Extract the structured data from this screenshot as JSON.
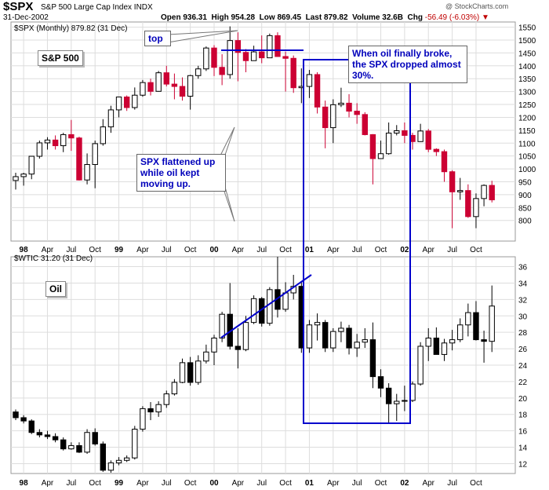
{
  "header": {
    "symbol": "$SPX",
    "name": "S&P 500 Large Cap Index INDX",
    "date": "31-Dec-2002",
    "open_label": "Open",
    "open": "936.31",
    "high_label": "High",
    "high": "954.28",
    "low_label": "Low",
    "low": "869.45",
    "last_label": "Last",
    "last": "879.82",
    "volume_label": "Volume",
    "volume": "32.6B",
    "chg_label": "Chg",
    "chg": "-56.49 (-6.03%)",
    "credit": "@ StockCharts.com"
  },
  "annotations": {
    "top": "top",
    "spx_label": "S&P 500",
    "oil_label": "Oil",
    "flat_note": "SPX flattened up while oil kept moving up.",
    "broke_note": "When oil finally broke, the SPX dropped almost 30%."
  },
  "colors": {
    "down": "#cc0033",
    "up_fill": "#ffffff",
    "oil_down": "#000000",
    "line": "#0000cc",
    "grid": "#dddddd"
  },
  "chart_data": [
    {
      "type": "candlestick",
      "legend": "$SPX (Monthly) 879.82 (31 Dec)",
      "ylim": [
        720,
        1570
      ],
      "y_ticks": [
        800,
        850,
        900,
        950,
        1000,
        1050,
        1100,
        1150,
        1200,
        1250,
        1300,
        1350,
        1400,
        1450,
        1500,
        1550
      ],
      "x_ticks": [
        "98",
        "Apr",
        "Jul",
        "Oct",
        "99",
        "Apr",
        "Jul",
        "Oct",
        "00",
        "Apr",
        "Jul",
        "Oct",
        "01",
        "Apr",
        "Jul",
        "Oct",
        "02",
        "Apr",
        "Jul",
        "Oct"
      ],
      "x_ticks_bold": [
        "98",
        "99",
        "00",
        "01",
        "02"
      ],
      "months": [
        "1997-12",
        "1998-01",
        "1998-02",
        "1998-03",
        "1998-04",
        "1998-05",
        "1998-06",
        "1998-07",
        "1998-08",
        "1998-09",
        "1998-10",
        "1998-11",
        "1998-12",
        "1999-01",
        "1999-02",
        "1999-03",
        "1999-04",
        "1999-05",
        "1999-06",
        "1999-07",
        "1999-08",
        "1999-09",
        "1999-10",
        "1999-11",
        "1999-12",
        "2000-01",
        "2000-02",
        "2000-03",
        "2000-04",
        "2000-05",
        "2000-06",
        "2000-07",
        "2000-08",
        "2000-09",
        "2000-10",
        "2000-11",
        "2000-12",
        "2001-01",
        "2001-02",
        "2001-03",
        "2001-04",
        "2001-05",
        "2001-06",
        "2001-07",
        "2001-08",
        "2001-09",
        "2001-10",
        "2001-11",
        "2001-12",
        "2002-01",
        "2002-02",
        "2002-03",
        "2002-04",
        "2002-05",
        "2002-06",
        "2002-07",
        "2002-08",
        "2002-09",
        "2002-10",
        "2002-11",
        "2002-12"
      ],
      "open": [
        955,
        970,
        980,
        1049,
        1101,
        1112,
        1090,
        1133,
        1120,
        957,
        1017,
        1098,
        1163,
        1229,
        1279,
        1238,
        1286,
        1335,
        1301,
        1373,
        1329,
        1320,
        1282,
        1362,
        1388,
        1469,
        1394,
        1366,
        1498,
        1452,
        1420,
        1454,
        1431,
        1517,
        1436,
        1429,
        1315,
        1320,
        1366,
        1240,
        1160,
        1249,
        1255,
        1224,
        1211,
        1133,
        1040,
        1059,
        1139,
        1148,
        1130,
        1106,
        1147,
        1076,
        1067,
        989,
        911,
        916,
        815,
        885,
        936
      ],
      "high": [
        985,
        985,
        1050,
        1110,
        1123,
        1130,
        1140,
        1190,
        1125,
        1060,
        1110,
        1193,
        1245,
        1280,
        1285,
        1316,
        1345,
        1350,
        1380,
        1400,
        1370,
        1355,
        1365,
        1400,
        1475,
        1480,
        1445,
        1553,
        1530,
        1465,
        1478,
        1518,
        1525,
        1530,
        1455,
        1440,
        1390,
        1384,
        1375,
        1265,
        1270,
        1315,
        1290,
        1255,
        1220,
        1135,
        1110,
        1180,
        1170,
        1180,
        1140,
        1175,
        1155,
        1080,
        1075,
        995,
        965,
        940,
        905,
        940,
        954
      ],
      "low": [
        920,
        935,
        960,
        1040,
        1075,
        1075,
        1065,
        1070,
        955,
        940,
        925,
        1090,
        1140,
        1200,
        1225,
        1230,
        1280,
        1285,
        1300,
        1320,
        1270,
        1265,
        1230,
        1350,
        1380,
        1360,
        1325,
        1350,
        1340,
        1375,
        1420,
        1410,
        1430,
        1435,
        1300,
        1295,
        1255,
        1275,
        1215,
        1080,
        1100,
        1240,
        1200,
        1175,
        1130,
        940,
        1040,
        1055,
        1130,
        1100,
        1075,
        1105,
        1065,
        1050,
        950,
        770,
        880,
        810,
        770,
        855,
        870
      ],
      "close": [
        970,
        980,
        1049,
        1101,
        1112,
        1090,
        1133,
        1120,
        957,
        1017,
        1098,
        1163,
        1229,
        1279,
        1238,
        1286,
        1335,
        1301,
        1373,
        1329,
        1320,
        1282,
        1362,
        1388,
        1469,
        1394,
        1366,
        1498,
        1452,
        1420,
        1454,
        1431,
        1517,
        1436,
        1429,
        1315,
        1320,
        1366,
        1240,
        1160,
        1249,
        1255,
        1224,
        1211,
        1133,
        1040,
        1059,
        1139,
        1148,
        1130,
        1106,
        1147,
        1076,
        1067,
        989,
        911,
        916,
        815,
        885,
        936,
        880
      ]
    },
    {
      "type": "candlestick",
      "legend": "$WTIC 31.20 (31 Dec)",
      "ylim": [
        10.8,
        37.2
      ],
      "y_ticks": [
        12,
        14,
        16,
        18,
        20,
        22,
        24,
        26,
        28,
        30,
        32,
        34,
        36
      ],
      "x_ticks": [
        "98",
        "Apr",
        "Jul",
        "Oct",
        "99",
        "Apr",
        "Jul",
        "Oct",
        "00",
        "Apr",
        "Jul",
        "Oct",
        "01",
        "Apr",
        "Jul",
        "Oct",
        "02",
        "Apr",
        "Jul",
        "Oct"
      ],
      "x_ticks_bold": [
        "98",
        "99",
        "00",
        "01",
        "02"
      ],
      "open": [
        18.3,
        17.6,
        17.2,
        15.8,
        15.5,
        15.3,
        14.9,
        13.8,
        14.2,
        13.4,
        15.8,
        14.4,
        11.2,
        12.1,
        12.4,
        12.7,
        16.2,
        18.7,
        18.3,
        19.2,
        20.5,
        21.9,
        24.3,
        21.9,
        24.5,
        25.6,
        27.3,
        30.2,
        26.3,
        25.9,
        29.2,
        32.1,
        29.1,
        33.2,
        30.8,
        32.8,
        33.6,
        26.1,
        28.9,
        29.2,
        26.1,
        28.1,
        28.5,
        26.1,
        26.8,
        27.1,
        22.6,
        21.2,
        19.3,
        19.6,
        19.7,
        21.7,
        26.3,
        27.3,
        25.3,
        26.7,
        27.1,
        28.9,
        30.4,
        27.1,
        26.9
      ],
      "high": [
        18.6,
        17.9,
        17.4,
        16.2,
        16.0,
        15.7,
        15.2,
        14.6,
        14.6,
        16.2,
        16.3,
        14.7,
        12.4,
        12.8,
        13.0,
        16.6,
        19.0,
        19.5,
        19.6,
        20.9,
        22.3,
        24.8,
        25.0,
        25.2,
        26.5,
        27.7,
        30.5,
        34.0,
        28.5,
        30.0,
        32.5,
        32.3,
        33.5,
        37.2,
        34.1,
        35.0,
        34.2,
        29.5,
        30.3,
        29.5,
        28.5,
        29.3,
        28.9,
        27.8,
        28.5,
        29.2,
        23.5,
        21.8,
        20.5,
        21.5,
        22.0,
        26.8,
        28.5,
        28.6,
        27.2,
        28.3,
        29.7,
        31.5,
        31.8,
        28.2,
        33.7
      ],
      "low": [
        17.3,
        16.9,
        15.6,
        15.2,
        15.0,
        14.6,
        13.6,
        13.7,
        13.3,
        13.2,
        14.2,
        11.0,
        10.9,
        11.8,
        12.2,
        12.5,
        15.9,
        17.3,
        17.7,
        18.8,
        20.3,
        21.8,
        21.5,
        21.6,
        24.2,
        24.0,
        26.8,
        25.9,
        23.6,
        25.7,
        29.0,
        28.7,
        28.8,
        29.8,
        30.5,
        32.0,
        25.5,
        25.5,
        27.0,
        25.6,
        25.6,
        26.8,
        25.3,
        25.0,
        26.1,
        21.2,
        20.1,
        17.0,
        17.2,
        18.4,
        19.5,
        21.5,
        24.5,
        25.3,
        24.5,
        25.8,
        26.8,
        27.5,
        27.0,
        24.3,
        25.6
      ],
      "close": [
        17.6,
        17.2,
        15.8,
        15.5,
        15.3,
        14.9,
        13.8,
        14.2,
        13.4,
        15.8,
        14.4,
        11.2,
        12.1,
        12.4,
        12.7,
        16.2,
        18.7,
        18.3,
        19.2,
        20.5,
        21.9,
        24.3,
        21.9,
        24.5,
        25.6,
        27.3,
        30.2,
        26.3,
        25.9,
        29.2,
        32.1,
        29.1,
        33.2,
        30.8,
        32.8,
        33.6,
        26.1,
        28.9,
        29.2,
        26.1,
        28.1,
        28.5,
        26.1,
        26.8,
        27.1,
        22.6,
        21.2,
        19.3,
        19.6,
        19.7,
        21.7,
        26.3,
        27.3,
        25.3,
        26.7,
        27.1,
        28.9,
        30.4,
        27.1,
        26.9,
        31.2
      ]
    }
  ]
}
